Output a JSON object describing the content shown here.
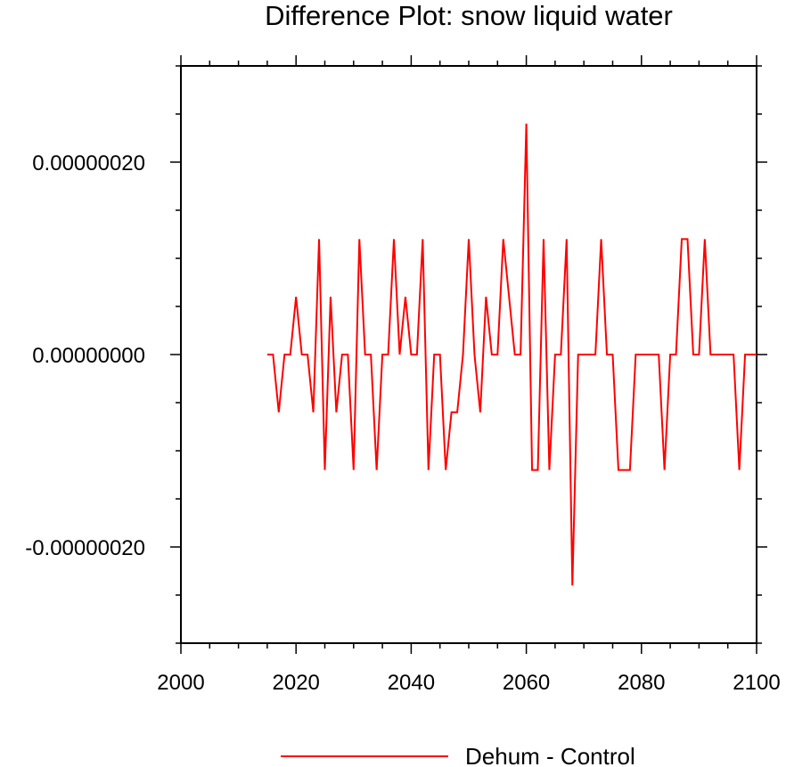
{
  "chart_data": {
    "type": "line",
    "title": "Difference Plot: snow liquid water",
    "xlabel": "",
    "ylabel": "",
    "xlim": [
      2000,
      2100
    ],
    "ylim": [
      -3e-07,
      3e-07
    ],
    "xticks": [
      2000,
      2020,
      2040,
      2060,
      2080,
      2100
    ],
    "xtick_labels": [
      "2000",
      "2020",
      "2040",
      "2060",
      "2080",
      "2100"
    ],
    "yticks": [
      -2e-07,
      0.0,
      2e-07
    ],
    "ytick_labels": [
      "-0.00000020",
      "0.00000000",
      "0.00000020"
    ],
    "grid": false,
    "legend_position": "bottom-center",
    "series": [
      {
        "name": "Dehum - Control",
        "color": "#ff0000",
        "x": [
          2015,
          2016,
          2017,
          2018,
          2019,
          2020,
          2021,
          2022,
          2023,
          2024,
          2025,
          2026,
          2027,
          2028,
          2029,
          2030,
          2031,
          2032,
          2033,
          2034,
          2035,
          2036,
          2037,
          2038,
          2039,
          2040,
          2041,
          2042,
          2043,
          2044,
          2045,
          2046,
          2047,
          2048,
          2049,
          2050,
          2051,
          2052,
          2053,
          2054,
          2055,
          2056,
          2057,
          2058,
          2059,
          2060,
          2061,
          2062,
          2063,
          2064,
          2065,
          2066,
          2067,
          2068,
          2069,
          2070,
          2071,
          2072,
          2073,
          2074,
          2075,
          2076,
          2077,
          2078,
          2079,
          2080,
          2081,
          2082,
          2083,
          2084,
          2085,
          2086,
          2087,
          2088,
          2089,
          2090,
          2091,
          2092,
          2093,
          2094,
          2095,
          2096,
          2097,
          2098,
          2099,
          2100
        ],
        "values": [
          0,
          0,
          -6e-08,
          0,
          0,
          6e-08,
          0,
          0,
          -6e-08,
          1.2e-07,
          -1.2e-07,
          6e-08,
          -6e-08,
          0,
          0,
          -1.2e-07,
          1.2e-07,
          0,
          0,
          -1.2e-07,
          0,
          0,
          1.2e-07,
          0,
          6e-08,
          0,
          0,
          1.2e-07,
          -1.2e-07,
          0,
          0,
          -1.2e-07,
          -6e-08,
          -6e-08,
          0,
          1.2e-07,
          0,
          -6e-08,
          6e-08,
          0,
          0,
          1.2e-07,
          6e-08,
          0,
          0,
          2.4e-07,
          -1.2e-07,
          -1.2e-07,
          1.2e-07,
          -1.2e-07,
          0,
          0,
          1.2e-07,
          -2.4e-07,
          0,
          0,
          0,
          0,
          1.2e-07,
          0,
          0,
          -1.2e-07,
          -1.2e-07,
          -1.2e-07,
          0,
          0,
          0,
          0,
          0,
          -1.2e-07,
          0,
          0,
          1.2e-07,
          1.2e-07,
          0,
          0,
          1.2e-07,
          0,
          0,
          0,
          0,
          0,
          -1.2e-07,
          0,
          0,
          0
        ]
      }
    ]
  }
}
